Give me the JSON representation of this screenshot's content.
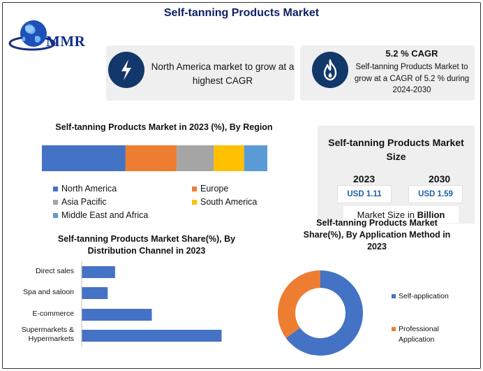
{
  "title": "Self-tanning Products Market",
  "logo": {
    "text": "MMR",
    "icon": "globe-icon"
  },
  "card1": {
    "icon": "lightning-icon",
    "text": "North America market to grow at a highest CAGR"
  },
  "card2": {
    "icon": "flame-icon",
    "title": "5.2 % CAGR",
    "text": "Self-tanning Products Market to grow at a CAGR of 5.2 % during 2024-2030"
  },
  "market_size": {
    "title": "Self-tanning Products Market Size",
    "years": [
      "2023",
      "2030"
    ],
    "values": [
      "USD 1.11",
      "USD 1.59"
    ],
    "footer_prefix": "Market Size in ",
    "footer_unit": "Billion"
  },
  "colors": {
    "blue": "#4472c4",
    "orange": "#ed7d31",
    "gray": "#a5a5a5",
    "yellow": "#ffc000",
    "light_blue": "#5b9bd5",
    "navy": "#12386b"
  },
  "chart_data": [
    {
      "type": "bar",
      "orientation": "stacked-horizontal",
      "title": "Self-tanning Products Market in 2023 (%), By Region",
      "series": [
        {
          "name": "North America",
          "values": [
            36
          ]
        },
        {
          "name": "Europe",
          "values": [
            22
          ]
        },
        {
          "name": "Asia Pacific",
          "values": [
            16
          ]
        },
        {
          "name": "South America",
          "values": [
            13
          ]
        },
        {
          "name": "Middle East and Africa",
          "values": [
            10
          ]
        }
      ],
      "legend": "bottom"
    },
    {
      "type": "bar",
      "orientation": "horizontal",
      "title": "Self-tanning Products Market Share(%), By Distribution Channel in 2023",
      "categories": [
        "Direct sales",
        "Spa and saloon",
        "E-commerce",
        "Supermarkets & Hypermarkets"
      ],
      "values": [
        9,
        7,
        19,
        38
      ]
    },
    {
      "type": "pie",
      "style": "donut",
      "title": "Self-tanning Products Market Share(%), By Application Method in 2023",
      "categories": [
        "Self-application",
        "Professional Application"
      ],
      "values": [
        65,
        35
      ],
      "legend": "right"
    }
  ]
}
